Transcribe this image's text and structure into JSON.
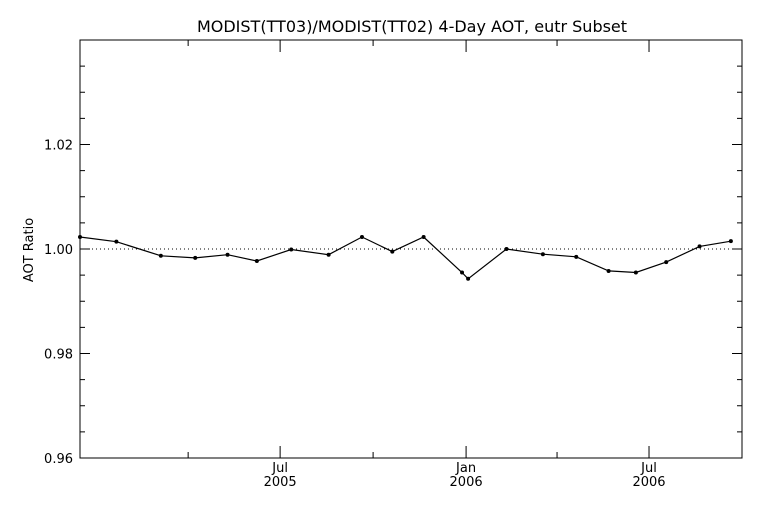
{
  "chart_data": {
    "type": "line",
    "title": "MODIST(TT03)/MODIST(TT02) 4-Day AOT, eutr Subset",
    "xlabel": "",
    "ylabel": "AOT Ratio",
    "ylim": [
      0.96,
      1.04
    ],
    "y_ticks": [
      {
        "value": 0.96,
        "label": "0.96"
      },
      {
        "value": 0.98,
        "label": "0.98"
      },
      {
        "value": 1.0,
        "label": "1.00"
      },
      {
        "value": 1.02,
        "label": "1.02"
      }
    ],
    "xlim": [
      "2004-12-15",
      "2006-10-01"
    ],
    "x_ticks": [
      {
        "date": "2005-07-01",
        "label": "Jul",
        "label2": "2005"
      },
      {
        "date": "2006-01-01",
        "label": "Jan",
        "label2": "2006"
      },
      {
        "date": "2006-07-01",
        "label": "Jul",
        "label2": "2006"
      }
    ],
    "reference_line": {
      "y": 1.0,
      "style": "dotted"
    },
    "grid": false,
    "series": [
      {
        "x": [
          "2004-12-15",
          "2005-01-20",
          "2005-03-05",
          "2005-04-08",
          "2005-05-10",
          "2005-06-08",
          "2005-07-12",
          "2005-08-18",
          "2005-09-20",
          "2005-10-20",
          "2005-11-20",
          "2005-12-28",
          "2006-01-03",
          "2006-02-10",
          "2006-03-18",
          "2006-04-20",
          "2006-05-22",
          "2006-06-18",
          "2006-07-18",
          "2006-08-20",
          "2006-09-20"
        ],
        "y": [
          1.0023,
          1.0014,
          0.9987,
          0.9983,
          0.9989,
          0.9977,
          0.9999,
          0.9989,
          1.0023,
          0.9995,
          1.0023,
          0.9955,
          0.9943,
          1.0,
          0.999,
          0.9985,
          0.9958,
          0.9955,
          0.9975,
          1.0005,
          1.0015
        ]
      }
    ]
  }
}
